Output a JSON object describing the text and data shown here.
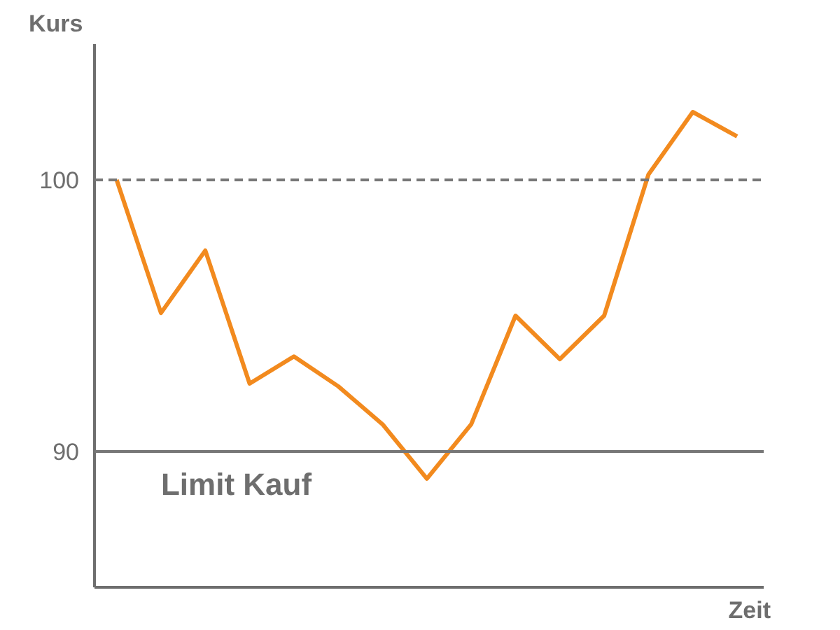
{
  "chart_data": {
    "type": "line",
    "ylabel": "Kurs",
    "xlabel": "Zeit",
    "categories": [
      null,
      null,
      null,
      null,
      null,
      null,
      null,
      null,
      null,
      null,
      null,
      null,
      null,
      null,
      null
    ],
    "series": [
      {
        "color": "#f28a1e",
        "values": [
          100,
          95.1,
          97.4,
          92.5,
          93.5,
          92.4,
          91.0,
          89.0,
          91.0,
          95.0,
          93.4,
          95.0,
          100.2,
          102.5,
          101.6
        ]
      }
    ],
    "ylim": [
      85,
      105
    ],
    "yticks": [
      90,
      100
    ],
    "grid": false,
    "marker": "none",
    "line_style": "solid",
    "ref_lines": [
      {
        "axis": "y",
        "value": 100,
        "label": null,
        "color": "#777777",
        "line_style": "dashed"
      },
      {
        "axis": "y",
        "value": 90,
        "label": "Limit Kauf",
        "color": "#777777",
        "line_style": "solid"
      }
    ]
  }
}
